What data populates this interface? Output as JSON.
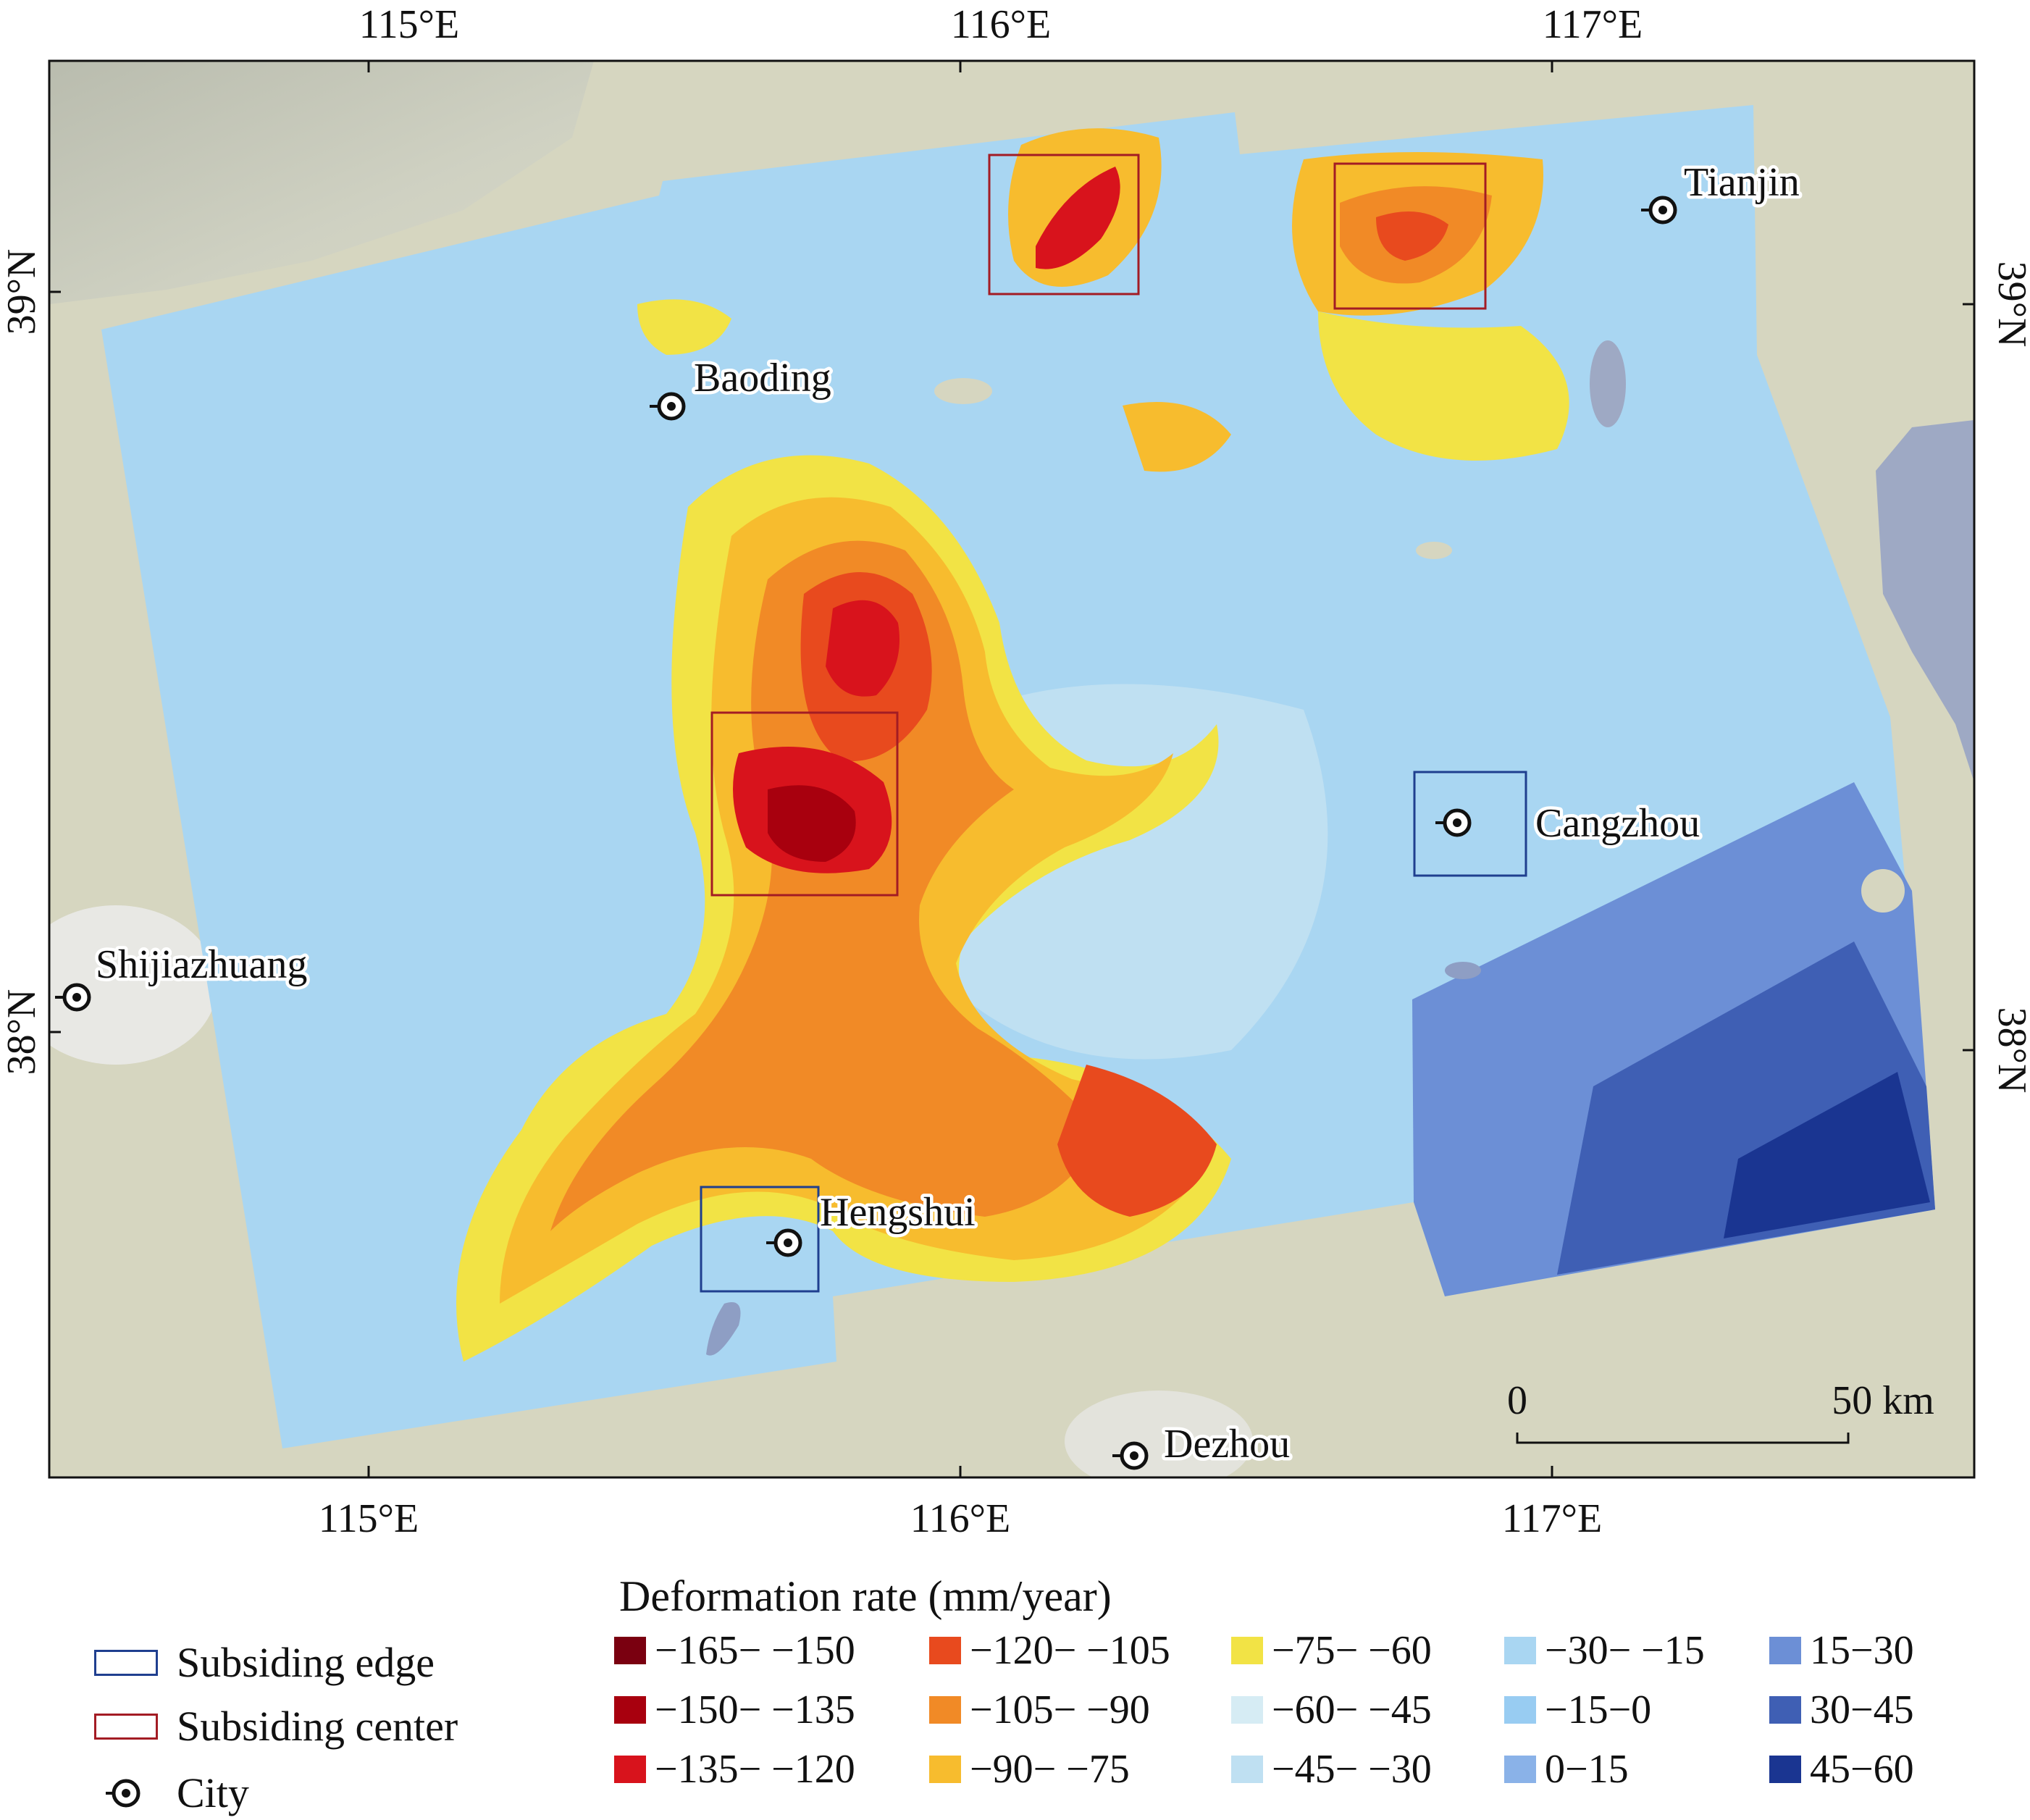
{
  "axes": {
    "lon_labels": [
      "115°E",
      "116°E",
      "117°E"
    ],
    "lat_labels": [
      "39°N",
      "38°N"
    ]
  },
  "cities": [
    {
      "name": "Tianjin"
    },
    {
      "name": "Baoding"
    },
    {
      "name": "Cangzhou"
    },
    {
      "name": "Shijiazhuang"
    },
    {
      "name": "Hengshui"
    },
    {
      "name": "Dezhou"
    }
  ],
  "scale_bar": {
    "start_label": "0",
    "end_label": "50 km"
  },
  "legend": {
    "title": "Deformation rate (mm/year)",
    "symbols": [
      {
        "label": "Subsiding edge",
        "color": "#1f3f8f"
      },
      {
        "label": "Subsiding center",
        "color": "#a31c24"
      },
      {
        "label": "City"
      }
    ],
    "classes": [
      {
        "label": "−165− −150",
        "color": "#7a0010"
      },
      {
        "label": "−150− −135",
        "color": "#a8000e"
      },
      {
        "label": "−135− −120",
        "color": "#d8131c"
      },
      {
        "label": "−120− −105",
        "color": "#e84a1e"
      },
      {
        "label": "−105− −90",
        "color": "#f18a26"
      },
      {
        "label": "−90− −75",
        "color": "#f7bc2e"
      },
      {
        "label": "−75− −60",
        "color": "#f2e345"
      },
      {
        "label": "−60− −45",
        "color": "#d6ecf4"
      },
      {
        "label": "−45− −30",
        "color": "#bfe0f2"
      },
      {
        "label": "−30− −15",
        "color": "#a9d6f2"
      },
      {
        "label": "−15−0",
        "color": "#98ccf2"
      },
      {
        "label": "0−15",
        "color": "#8ab2e8"
      },
      {
        "label": "15−30",
        "color": "#6c8fd6"
      },
      {
        "label": "30−45",
        "color": "#3f5fb4"
      },
      {
        "label": "45−60",
        "color": "#1a3591"
      }
    ]
  }
}
